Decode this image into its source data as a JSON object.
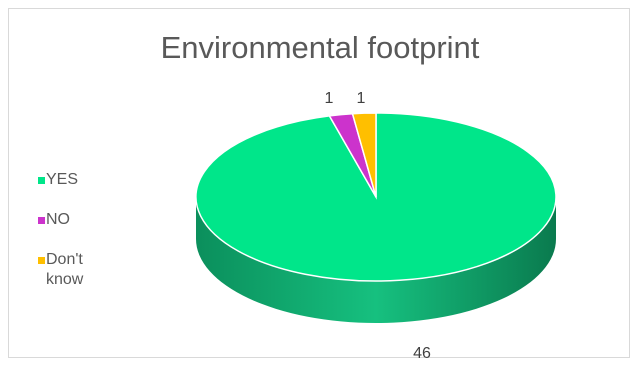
{
  "chart_data": {
    "type": "pie",
    "title": "Environmental footprint",
    "categories": [
      "YES",
      "NO",
      "Don't know"
    ],
    "values": [
      46,
      1,
      1
    ],
    "colors": [
      "#00e68a",
      "#cc33cc",
      "#ffbf00"
    ],
    "legend_position": "left",
    "data_labels": [
      "46",
      "1",
      "1"
    ]
  }
}
